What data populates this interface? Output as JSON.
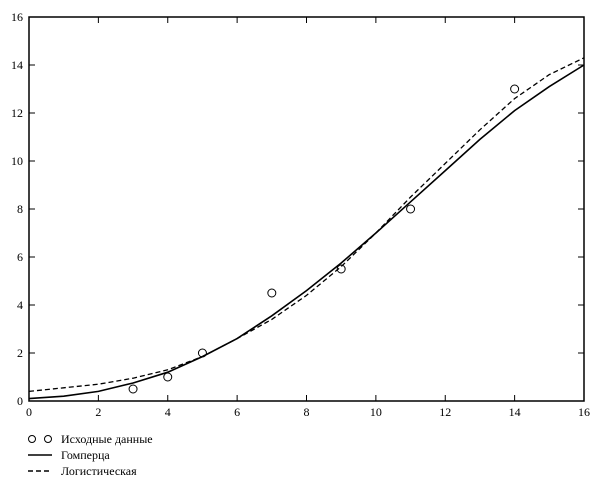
{
  "chart_data": {
    "type": "line",
    "xlim": [
      0,
      16
    ],
    "ylim": [
      0,
      16
    ],
    "xticks": [
      0,
      2,
      4,
      6,
      8,
      10,
      12,
      14,
      16
    ],
    "yticks": [
      0,
      2,
      4,
      6,
      8,
      10,
      12,
      14,
      16
    ],
    "grid": false,
    "legend_placement": "bottom-left",
    "series": [
      {
        "name": "Исходные данные",
        "style": "markers-circle",
        "x": [
          3,
          4,
          5,
          7,
          9,
          11,
          14
        ],
        "y": [
          0.5,
          1,
          2,
          4.5,
          5.5,
          8,
          13
        ]
      },
      {
        "name": "Гомперца",
        "style": "solid",
        "x": [
          0,
          1,
          2,
          3,
          4,
          5,
          6,
          7,
          8,
          9,
          10,
          11,
          12,
          13,
          14,
          15,
          16
        ],
        "y": [
          0.1,
          0.2,
          0.4,
          0.75,
          1.2,
          1.85,
          2.6,
          3.55,
          4.6,
          5.75,
          7.0,
          8.3,
          9.6,
          10.9,
          12.1,
          13.1,
          14.0
        ]
      },
      {
        "name": "Логистическая",
        "style": "dashed",
        "x": [
          0,
          1,
          2,
          3,
          4,
          5,
          6,
          7,
          8,
          9,
          10,
          11,
          12,
          13,
          14,
          15,
          16
        ],
        "y": [
          0.4,
          0.55,
          0.7,
          0.95,
          1.3,
          1.85,
          2.6,
          3.4,
          4.4,
          5.6,
          7.0,
          8.5,
          9.9,
          11.3,
          12.6,
          13.6,
          14.3
        ]
      }
    ]
  }
}
